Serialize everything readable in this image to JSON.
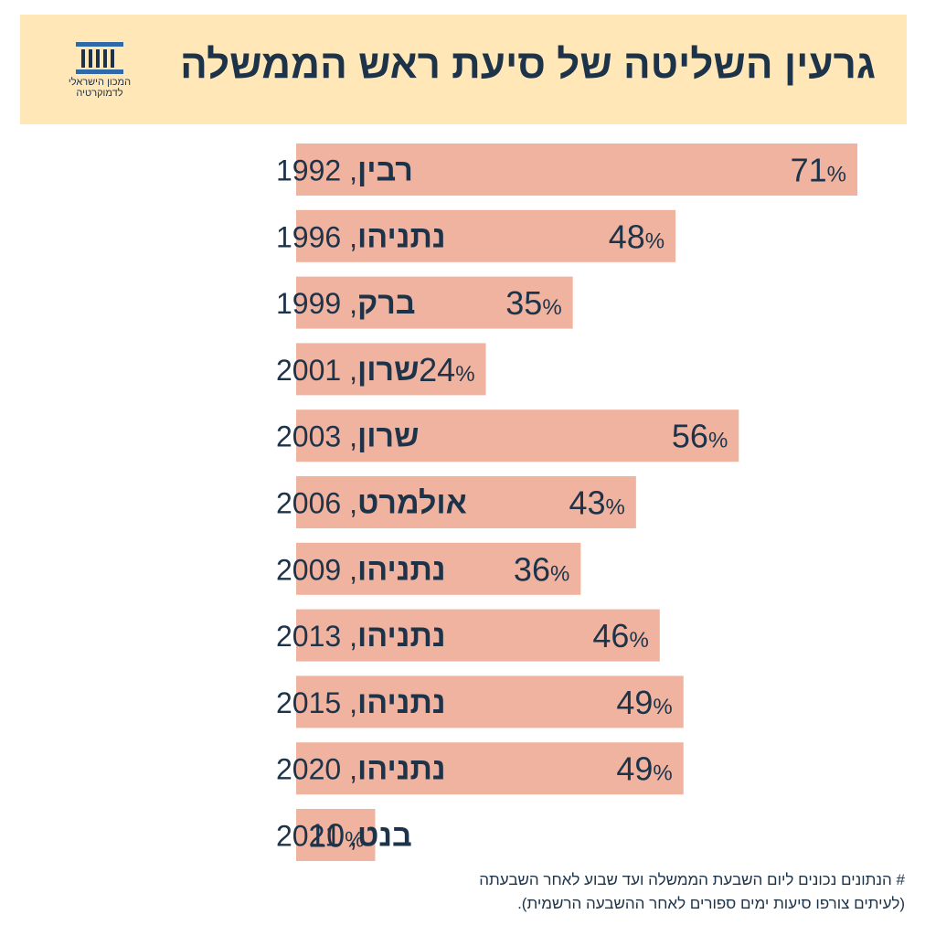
{
  "header": {
    "title": "גרעין השליטה של סיעת ראש הממשלה",
    "logo_line1": "המכון הישראלי",
    "logo_line2": "לדמוקרטיה"
  },
  "chart_data": {
    "type": "bar",
    "orientation": "horizontal",
    "categories": [
      {
        "name": "רבין",
        "year": "1992"
      },
      {
        "name": "נתניהו",
        "year": "1996"
      },
      {
        "name": "ברק",
        "year": "1999"
      },
      {
        "name": "שרון",
        "year": "2001"
      },
      {
        "name": "שרון",
        "year": "2003"
      },
      {
        "name": "אולמרט",
        "year": "2006"
      },
      {
        "name": "נתניהו",
        "year": "2009"
      },
      {
        "name": "נתניהו",
        "year": "2013"
      },
      {
        "name": "נתניהו",
        "year": "2015"
      },
      {
        "name": "נתניהו",
        "year": "2020"
      },
      {
        "name": "בנט",
        "year": "2021"
      }
    ],
    "values": [
      71,
      48,
      35,
      24,
      56,
      43,
      36,
      46,
      49,
      49,
      10
    ],
    "unit": "%",
    "title": "גרעין השליטה של סיעת ראש הממשלה",
    "xlim": [
      0,
      71
    ],
    "grid": false,
    "colors": {
      "bar": "#f0b3a0",
      "text": "#1d3349",
      "header_bg": "#ffe7b8"
    }
  },
  "footnote": {
    "line1": "# הנתונים נכונים ליום השבעת הממשלה ועד שבוע לאחר השבעתה",
    "line2": "(לעיתים צורפו סיעות ימים ספורים לאחר ההשבעה הרשמית)."
  }
}
